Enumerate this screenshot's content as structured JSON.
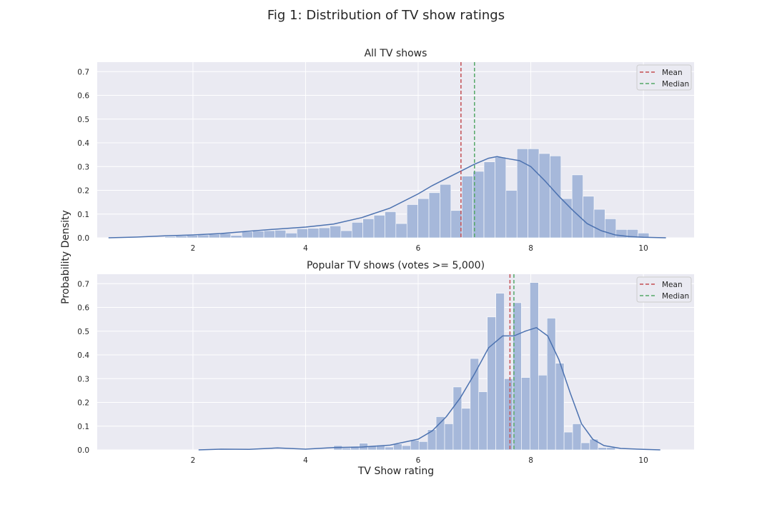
{
  "figure": {
    "title": "Fig 1: Distribution of TV show ratings",
    "xlabel": "TV Show rating",
    "ylabel": "Probability Density"
  },
  "colors": {
    "background": "#eaeaf2",
    "grid": "#ffffff",
    "bar": "#a6b8da",
    "kde": "#4c72b0",
    "mean": "#c44e52",
    "median": "#55a868"
  },
  "chart_data": [
    {
      "type": "histogram",
      "title": "All TV shows",
      "xlim": [
        0.3,
        10.9
      ],
      "ylim": [
        0,
        0.74
      ],
      "xticks": [
        2,
        4,
        6,
        8,
        10
      ],
      "yticks": [
        0.0,
        0.1,
        0.2,
        0.3,
        0.4,
        0.5,
        0.6,
        0.7
      ],
      "bin_edges": [
        1.5,
        10.1
      ],
      "bar_values": [
        0.005,
        0.008,
        0.01,
        0.012,
        0.015,
        0.018,
        0.01,
        0.025,
        0.028,
        0.03,
        0.032,
        0.02,
        0.038,
        0.04,
        0.042,
        0.05,
        0.03,
        0.065,
        0.08,
        0.095,
        0.11,
        0.06,
        0.14,
        0.165,
        0.19,
        0.225,
        0.115,
        0.26,
        0.28,
        0.32,
        0.34,
        0.2,
        0.375,
        0.375,
        0.355,
        0.345,
        0.165,
        0.265,
        0.175,
        0.12,
        0.08,
        0.035,
        0.035,
        0.02
      ],
      "kde": {
        "x": [
          0.5,
          1.0,
          1.5,
          2.0,
          2.5,
          3.0,
          3.5,
          4.0,
          4.5,
          5.0,
          5.5,
          6.0,
          6.25,
          6.5,
          6.75,
          7.0,
          7.25,
          7.4,
          7.6,
          7.8,
          8.0,
          8.25,
          8.5,
          8.75,
          9.0,
          9.25,
          9.5,
          9.75,
          10.0,
          10.4
        ],
        "y": [
          0.0,
          0.003,
          0.008,
          0.012,
          0.018,
          0.028,
          0.037,
          0.045,
          0.058,
          0.085,
          0.125,
          0.185,
          0.22,
          0.25,
          0.28,
          0.31,
          0.335,
          0.342,
          0.333,
          0.325,
          0.3,
          0.24,
          0.175,
          0.115,
          0.06,
          0.03,
          0.012,
          0.005,
          0.002,
          0.0
        ]
      },
      "mean": 6.76,
      "median": 7.0,
      "legend": {
        "position": "upper-right",
        "entries": [
          "Mean",
          "Median"
        ]
      }
    },
    {
      "type": "histogram",
      "title": "Popular TV shows (votes >= 5,000)",
      "xlim": [
        0.3,
        10.9
      ],
      "ylim": [
        0,
        0.74
      ],
      "xticks": [
        2,
        4,
        6,
        8,
        10
      ],
      "yticks": [
        0.0,
        0.1,
        0.2,
        0.3,
        0.4,
        0.5,
        0.6,
        0.7
      ],
      "bin_edges": [
        4.5,
        9.5
      ],
      "bar_values": [
        0.018,
        0.008,
        0.015,
        0.028,
        0.015,
        0.02,
        0.012,
        0.025,
        0.018,
        0.04,
        0.035,
        0.085,
        0.14,
        0.11,
        0.265,
        0.175,
        0.385,
        0.245,
        0.56,
        0.66,
        0.3,
        0.62,
        0.305,
        0.705,
        0.315,
        0.555,
        0.365,
        0.075,
        0.11,
        0.03,
        0.045,
        0.01,
        0.01
      ],
      "kde": {
        "x": [
          2.1,
          2.5,
          3.0,
          3.5,
          4.0,
          4.5,
          5.0,
          5.5,
          6.0,
          6.25,
          6.5,
          6.75,
          7.0,
          7.25,
          7.5,
          7.7,
          7.9,
          8.1,
          8.3,
          8.5,
          8.7,
          8.9,
          9.1,
          9.3,
          9.6,
          10.0,
          10.3
        ],
        "y": [
          0.0,
          0.003,
          0.002,
          0.008,
          0.003,
          0.01,
          0.012,
          0.02,
          0.045,
          0.08,
          0.14,
          0.22,
          0.32,
          0.43,
          0.48,
          0.48,
          0.5,
          0.515,
          0.48,
          0.38,
          0.24,
          0.11,
          0.045,
          0.018,
          0.006,
          0.002,
          0.0
        ]
      },
      "mean": 7.63,
      "median": 7.7,
      "legend": {
        "position": "upper-right",
        "entries": [
          "Mean",
          "Median"
        ]
      }
    }
  ]
}
